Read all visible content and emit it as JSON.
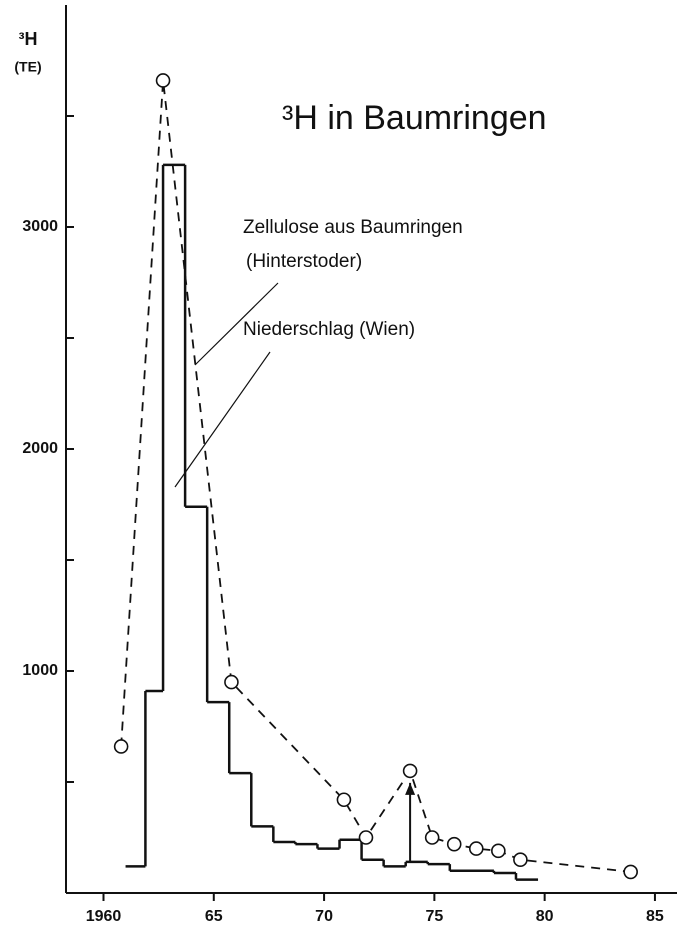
{
  "chart_data": {
    "type": "line",
    "title": "³H in Baumringen",
    "y_label": "³H",
    "y_unit": "(TE)",
    "annotations": [
      "Zellulose aus Baumringen",
      "(Hinterstoder)",
      "Niederschlag (Wien)"
    ],
    "xlim": [
      1958.3,
      1986
    ],
    "ylim": [
      0,
      4000
    ],
    "xticks": [
      {
        "value": 1960,
        "label": "1960"
      },
      {
        "value": 1965,
        "label": "65"
      },
      {
        "value": 1970,
        "label": "70"
      },
      {
        "value": 1975,
        "label": "75"
      },
      {
        "value": 1980,
        "label": "80"
      },
      {
        "value": 1985,
        "label": "85"
      }
    ],
    "yticks": [
      1000,
      2000,
      3000
    ],
    "minor_yticks": [
      500,
      1500,
      2500,
      3500
    ],
    "series": [
      {
        "type": "step",
        "color": "#111",
        "bins": [
          1961.0,
          1961.9,
          1962.7,
          1963.7,
          1964.7,
          1965.7,
          1966.7,
          1967.7,
          1968.7,
          1969.7,
          1970.7,
          1971.7,
          1972.7,
          1973.7,
          1974.7,
          1975.7,
          1977.7,
          1978.7,
          1979.7
        ],
        "values": [
          120,
          910,
          3280,
          1740,
          860,
          540,
          300,
          230,
          220,
          200,
          240,
          150,
          120,
          140,
          130,
          100,
          90,
          60
        ]
      },
      {
        "type": "dashed",
        "color": "#111",
        "x": [
          1960.8,
          1962.7,
          1965.8,
          1970.9,
          1971.9,
          1973.9,
          1974.9,
          1975.9,
          1976.9,
          1977.9,
          1978.9,
          1983.9
        ],
        "values": [
          660,
          3660,
          950,
          420,
          250,
          550,
          250,
          220,
          200,
          190,
          150,
          95
        ]
      }
    ]
  }
}
